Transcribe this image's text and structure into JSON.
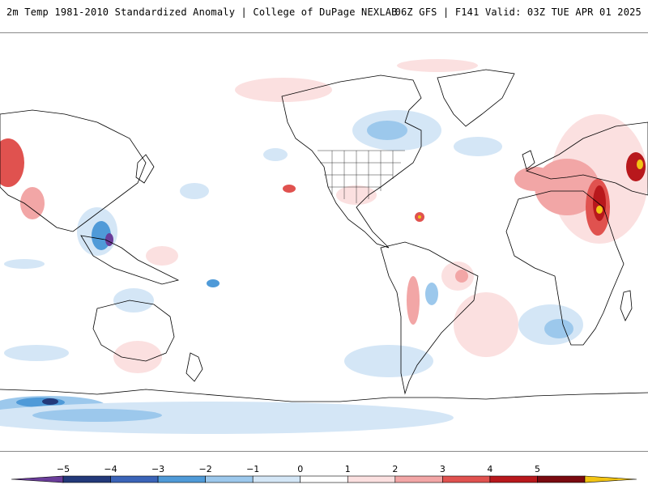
{
  "header": {
    "title_left": "2m Temp 1981-2010 Standardized Anomaly | College of DuPage NEXLAB",
    "title_right": "06Z GFS | F141 Valid: 03Z TUE APR 01 2025"
  },
  "map": {
    "projection": "equirectangular",
    "center_longitude": "180 (Pacific-centered)",
    "colors": {
      "land_outline": "#000000",
      "background": "#ffffff"
    }
  },
  "colorbar": {
    "ticks": [
      "-5",
      "-4",
      "-3",
      "-2",
      "-1",
      "0",
      "1",
      "2",
      "3",
      "4",
      "5"
    ],
    "bins": [
      {
        "color": "#6a3d9a"
      },
      {
        "color": "#23397a"
      },
      {
        "color": "#3b64b8"
      },
      {
        "color": "#4f9ad8"
      },
      {
        "color": "#9cc8ec"
      },
      {
        "color": "#d4e6f6"
      },
      {
        "color": "#ffffff"
      },
      {
        "color": "#fbe0e0"
      },
      {
        "color": "#f2a6a6"
      },
      {
        "color": "#e0524f"
      },
      {
        "color": "#b8181c"
      },
      {
        "color": "#7a0a10"
      },
      {
        "color": "#f2c413"
      }
    ]
  }
}
